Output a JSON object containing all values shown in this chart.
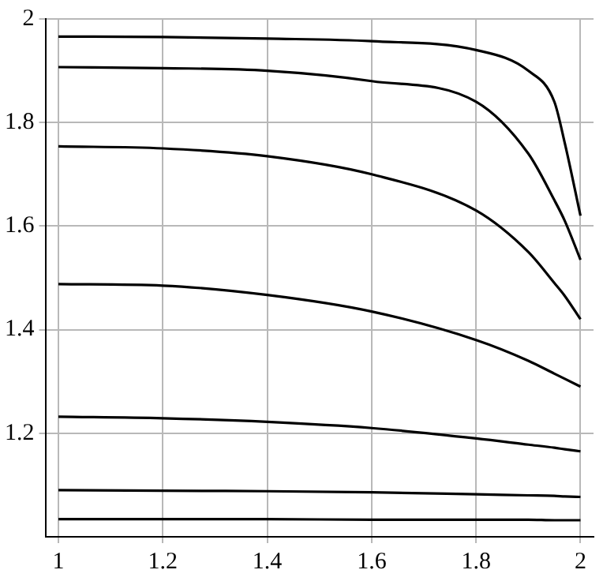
{
  "chart_data": {
    "type": "line",
    "x": [
      1,
      1.2,
      1.4,
      1.6,
      1.8,
      1.9,
      1.95,
      1.97,
      2
    ],
    "series": [
      {
        "color": "#000000",
        "values": [
          1.966,
          1.965,
          1.962,
          1.957,
          1.94,
          1.9,
          1.84,
          1.76,
          1.62
        ]
      },
      {
        "color": "#000000",
        "values": [
          1.907,
          1.905,
          1.9,
          1.88,
          1.84,
          1.74,
          1.65,
          1.61,
          1.535
        ]
      },
      {
        "color": "#000000",
        "values": [
          1.754,
          1.75,
          1.735,
          1.7,
          1.63,
          1.55,
          1.49,
          1.465,
          1.42
        ]
      },
      {
        "color": "#000000",
        "values": [
          1.488,
          1.485,
          1.467,
          1.435,
          1.38,
          1.34,
          1.315,
          1.305,
          1.29
        ]
      },
      {
        "color": "#000000",
        "values": [
          1.232,
          1.229,
          1.222,
          1.21,
          1.19,
          1.178,
          1.172,
          1.169,
          1.165
        ]
      },
      {
        "color": "#000000",
        "values": [
          1.09,
          1.089,
          1.088,
          1.086,
          1.082,
          1.08,
          1.079,
          1.078,
          1.077
        ]
      },
      {
        "color": "#000000",
        "values": [
          1.034,
          1.034,
          1.034,
          1.033,
          1.033,
          1.033,
          1.032,
          1.032,
          1.032
        ]
      }
    ],
    "xlim": [
      0.975,
      2.025
    ],
    "ylim": [
      1,
      2
    ],
    "xticks": [
      1,
      1.2,
      1.4,
      1.6,
      1.8,
      2
    ],
    "yticks": [
      1.2,
      1.4,
      1.6,
      1.8,
      2
    ],
    "grid": true,
    "legend": false,
    "marker": "none",
    "line_style": "solid"
  }
}
